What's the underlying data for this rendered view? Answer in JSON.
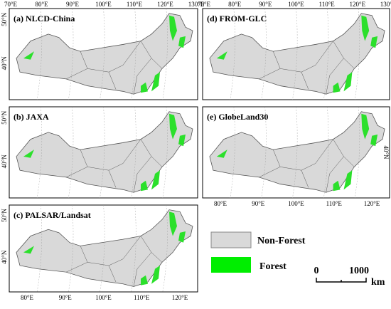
{
  "panels": [
    {
      "label": "(a) NLCD-China",
      "top_labels": [
        "70°E",
        "80°E",
        "90°E",
        "100°E",
        "110°E",
        "120°E",
        "130°E"
      ],
      "left_labels": [
        "50°N",
        "40°N"
      ]
    },
    {
      "label": "(b) JAXA",
      "left_labels": [
        "50°N",
        "40°N"
      ]
    },
    {
      "label": "(c) PALSAR/Landsat",
      "left_labels": [
        "50°N",
        "40°N"
      ],
      "bottom_labels": [
        "80°E",
        "90°E",
        "100°E",
        "110°E",
        "120°E"
      ]
    },
    {
      "label": "(d) FROM-GLC",
      "top_labels": [
        "70°E",
        "80°E",
        "90°E",
        "100°E",
        "110°E",
        "120°E",
        "130°E"
      ]
    },
    {
      "label": "(e) GlobeLand30",
      "right_labels": [
        "40°N"
      ],
      "bottom_labels": [
        "80°E",
        "90°E",
        "100°E",
        "110°E",
        "120°E"
      ]
    }
  ],
  "legend": [
    {
      "label": "Non-Forest"
    },
    {
      "label": "Forest"
    }
  ],
  "scale_bar": {
    "labels": [
      "0",
      "1000"
    ],
    "unit": "km"
  }
}
